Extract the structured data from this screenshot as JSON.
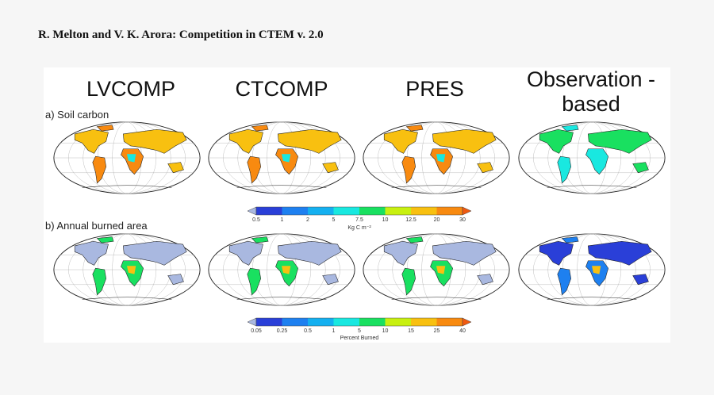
{
  "header": "R. Melton and V. K. Arora: Competition in CTEM v. 2.0",
  "columns": [
    "LVCOMP",
    "CTCOMP",
    "PRES",
    "Observation -based"
  ],
  "rows": [
    {
      "label": "a) Soil carbon",
      "colorbar": {
        "ticks": [
          "0.5",
          "1",
          "2",
          "5",
          "7.5",
          "10",
          "12.5",
          "20",
          "30"
        ],
        "unit": "Kg C m⁻²"
      }
    },
    {
      "label": "b) Annual burned area",
      "colorbar": {
        "ticks": [
          "0.05",
          "0.25",
          "0.5",
          "1",
          "5",
          "10",
          "15",
          "25",
          "40"
        ],
        "unit": "Percent Burned"
      }
    }
  ],
  "colors": {
    "under": "#a9b8e0",
    "levels": [
      "#2a3fd8",
      "#1e80f0",
      "#14b0f0",
      "#19e8e0",
      "#19e060",
      "#c8f010",
      "#f8c010",
      "#f88a10"
    ],
    "over": "#f05a10"
  }
}
